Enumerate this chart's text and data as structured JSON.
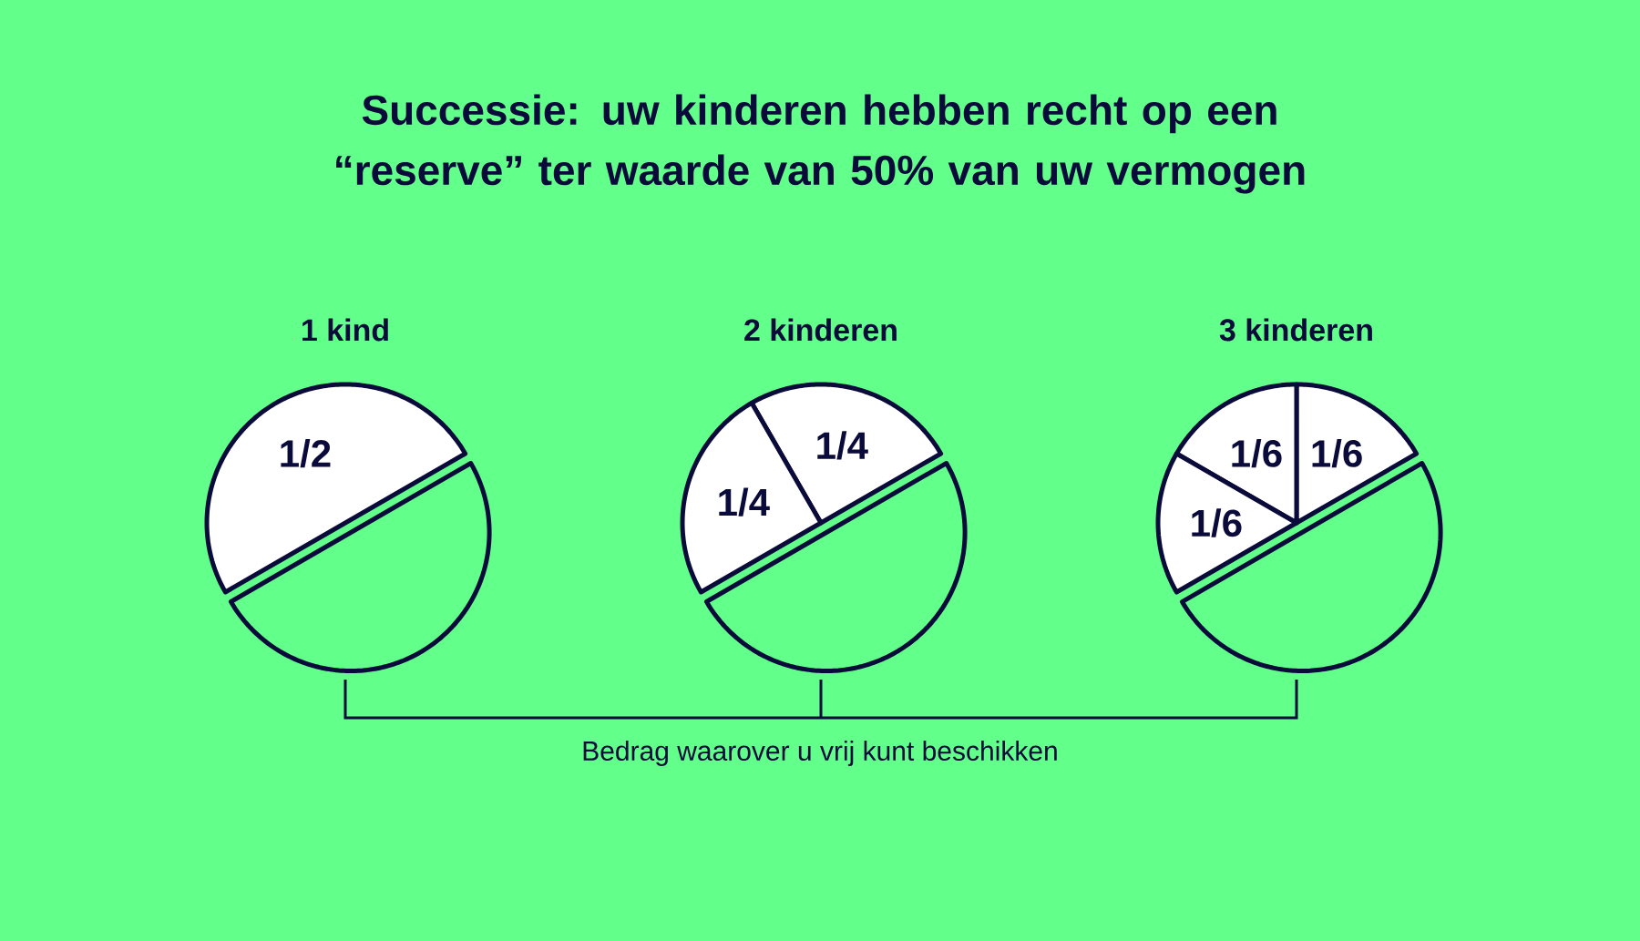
{
  "chart_data": [
    {
      "type": "other",
      "title": "Successie: uw kinderen hebben recht op een “reserve” ter waarde van 50% van uw vermogen",
      "annotations": [
        "Bedrag waarover u vrij kunt beschikken"
      ]
    },
    {
      "type": "pie",
      "title": "1 kind",
      "categories": [
        null,
        null
      ],
      "values": [
        0.5,
        0.5
      ],
      "value_labels": [
        "1/2",
        null
      ],
      "colors": [
        "#ffffff",
        "#63ff8b"
      ]
    },
    {
      "type": "pie",
      "title": "2 kinderen",
      "categories": [
        null,
        null,
        null
      ],
      "values": [
        0.25,
        0.25,
        0.5
      ],
      "value_labels": [
        "1/4",
        "1/4",
        null
      ],
      "colors": [
        "#ffffff",
        "#ffffff",
        "#63ff8b"
      ]
    },
    {
      "type": "pie",
      "title": "3 kinderen",
      "categories": [
        null,
        null,
        null,
        null
      ],
      "values": [
        0.1667,
        0.1667,
        0.1667,
        0.5
      ],
      "value_labels": [
        "1/6",
        "1/6",
        "1/6",
        null
      ],
      "colors": [
        "#ffffff",
        "#ffffff",
        "#ffffff",
        "#63ff8b"
      ]
    }
  ]
}
